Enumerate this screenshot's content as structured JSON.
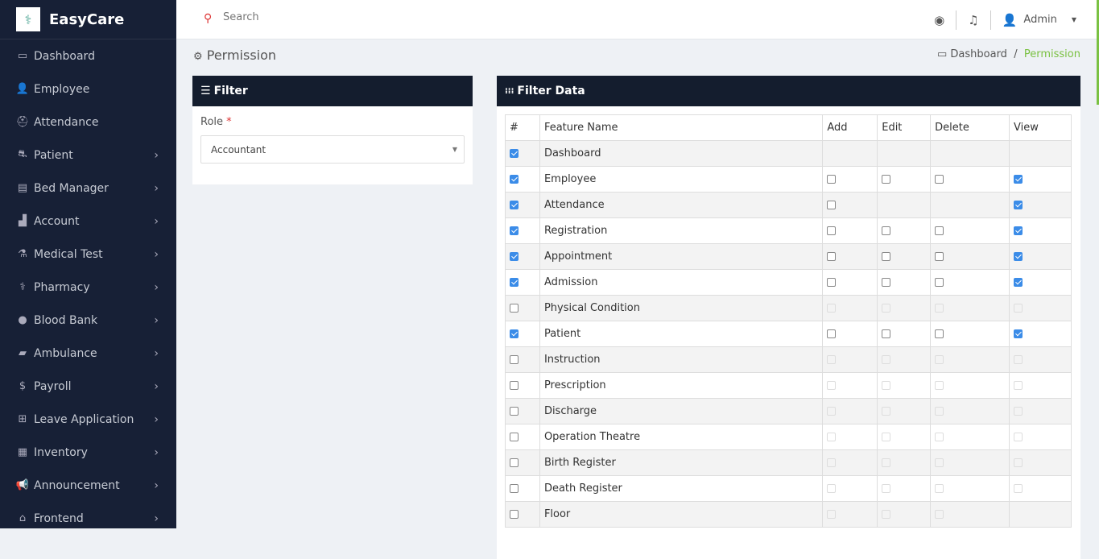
{
  "brand": {
    "name": "EasyCare"
  },
  "sidebar": {
    "items": [
      {
        "label": "Dashboard",
        "icon": "laptop-icon",
        "glyph": "▭",
        "chevron": false
      },
      {
        "label": "Employee",
        "icon": "user-icon",
        "glyph": "👤",
        "chevron": false
      },
      {
        "label": "Attendance",
        "icon": "user-secret-icon",
        "glyph": "⛑",
        "chevron": false
      },
      {
        "label": "Patient",
        "icon": "bed-patient-icon",
        "glyph": "⛐",
        "chevron": true
      },
      {
        "label": "Bed Manager",
        "icon": "bed-icon",
        "glyph": "▤",
        "chevron": true
      },
      {
        "label": "Account",
        "icon": "chart-icon",
        "glyph": "▟",
        "chevron": true
      },
      {
        "label": "Medical Test",
        "icon": "medical-test-icon",
        "glyph": "⚗",
        "chevron": true
      },
      {
        "label": "Pharmacy",
        "icon": "pharmacy-icon",
        "glyph": "⚕",
        "chevron": true
      },
      {
        "label": "Blood Bank",
        "icon": "drop-icon",
        "glyph": "●",
        "chevron": true
      },
      {
        "label": "Ambulance",
        "icon": "ambulance-icon",
        "glyph": "▰",
        "chevron": true
      },
      {
        "label": "Payroll",
        "icon": "dollar-icon",
        "glyph": "$",
        "chevron": true
      },
      {
        "label": "Leave Application",
        "icon": "table-icon",
        "glyph": "⊞",
        "chevron": true
      },
      {
        "label": "Inventory",
        "icon": "keyboard-icon",
        "glyph": "▦",
        "chevron": true
      },
      {
        "label": "Announcement",
        "icon": "bullhorn-icon",
        "glyph": "📢",
        "chevron": true
      },
      {
        "label": "Frontend",
        "icon": "home-icon",
        "glyph": "⌂",
        "chevron": true
      }
    ]
  },
  "topbar": {
    "search_placeholder": "Search",
    "user": "Admin"
  },
  "page": {
    "title": "Permission",
    "breadcrumb": [
      "Dashboard",
      "Permission"
    ]
  },
  "filter": {
    "title": "Filter",
    "role_label": "Role",
    "role_required": "*",
    "role_value": "Accountant"
  },
  "data_panel": {
    "title": "Filter Data",
    "columns": [
      "#",
      "Feature Name",
      "Add",
      "Edit",
      "Delete",
      "View"
    ],
    "rows": [
      {
        "name": "Dashboard",
        "enabled": true,
        "perms": [
          "none",
          "none",
          "none",
          "none"
        ]
      },
      {
        "name": "Employee",
        "enabled": true,
        "perms": [
          "unchecked",
          "unchecked",
          "unchecked",
          "checked"
        ]
      },
      {
        "name": "Attendance",
        "enabled": true,
        "perms": [
          "unchecked",
          "none",
          "none",
          "checked"
        ]
      },
      {
        "name": "Registration",
        "enabled": true,
        "perms": [
          "unchecked",
          "unchecked",
          "unchecked",
          "checked"
        ]
      },
      {
        "name": "Appointment",
        "enabled": true,
        "perms": [
          "unchecked",
          "unchecked",
          "unchecked",
          "checked"
        ]
      },
      {
        "name": "Admission",
        "enabled": true,
        "perms": [
          "unchecked",
          "unchecked",
          "unchecked",
          "checked"
        ]
      },
      {
        "name": "Physical Condition",
        "enabled": false,
        "perms": [
          "disabled",
          "disabled",
          "disabled",
          "disabled"
        ]
      },
      {
        "name": "Patient",
        "enabled": true,
        "perms": [
          "unchecked",
          "unchecked",
          "unchecked",
          "checked"
        ]
      },
      {
        "name": "Instruction",
        "enabled": false,
        "perms": [
          "disabled",
          "disabled",
          "disabled",
          "disabled"
        ]
      },
      {
        "name": "Prescription",
        "enabled": false,
        "perms": [
          "disabled",
          "disabled",
          "disabled",
          "disabled"
        ]
      },
      {
        "name": "Discharge",
        "enabled": false,
        "perms": [
          "disabled",
          "disabled",
          "disabled",
          "disabled"
        ]
      },
      {
        "name": "Operation Theatre",
        "enabled": false,
        "perms": [
          "disabled",
          "disabled",
          "disabled",
          "disabled"
        ]
      },
      {
        "name": "Birth Register",
        "enabled": false,
        "perms": [
          "disabled",
          "disabled",
          "disabled",
          "disabled"
        ]
      },
      {
        "name": "Death Register",
        "enabled": false,
        "perms": [
          "disabled",
          "disabled",
          "disabled",
          "disabled"
        ]
      },
      {
        "name": "Floor",
        "enabled": false,
        "perms": [
          "disabled",
          "disabled",
          "disabled",
          "none"
        ]
      }
    ]
  },
  "colors": {
    "sidebar": "#172036",
    "panel_header": "#141d2e",
    "accent_green": "#7ac142",
    "checkbox": "#3b8ce8",
    "search_icon": "#dd3333"
  }
}
